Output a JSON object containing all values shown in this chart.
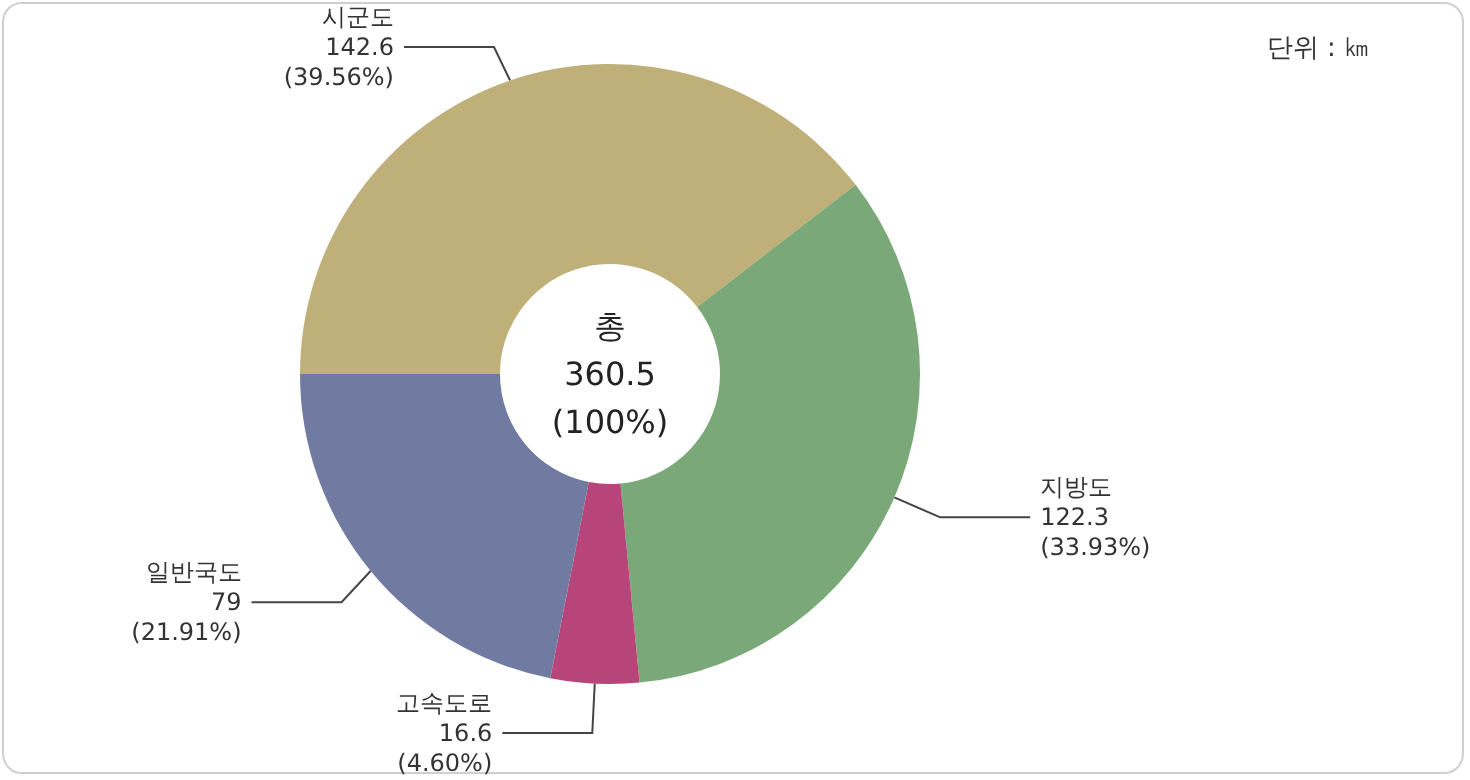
{
  "chart_data": {
    "type": "donut",
    "categories": [
      "시군도",
      "지방도",
      "고속도로",
      "일반국도"
    ],
    "values": [
      142.6,
      122.3,
      16.6,
      79
    ],
    "value_labels": [
      "142.6\n(39.56%)",
      "122.3\n(33.93%)",
      "16.6\n(4.60%)",
      "79\n(21.91%)"
    ],
    "colors": [
      "#bfb07a",
      "#7ba878",
      "#b8457a",
      "#717aa0"
    ],
    "annotations": [
      "총\n360.5\n(100%)",
      "단위 : ㎞"
    ],
    "legend": false
  }
}
